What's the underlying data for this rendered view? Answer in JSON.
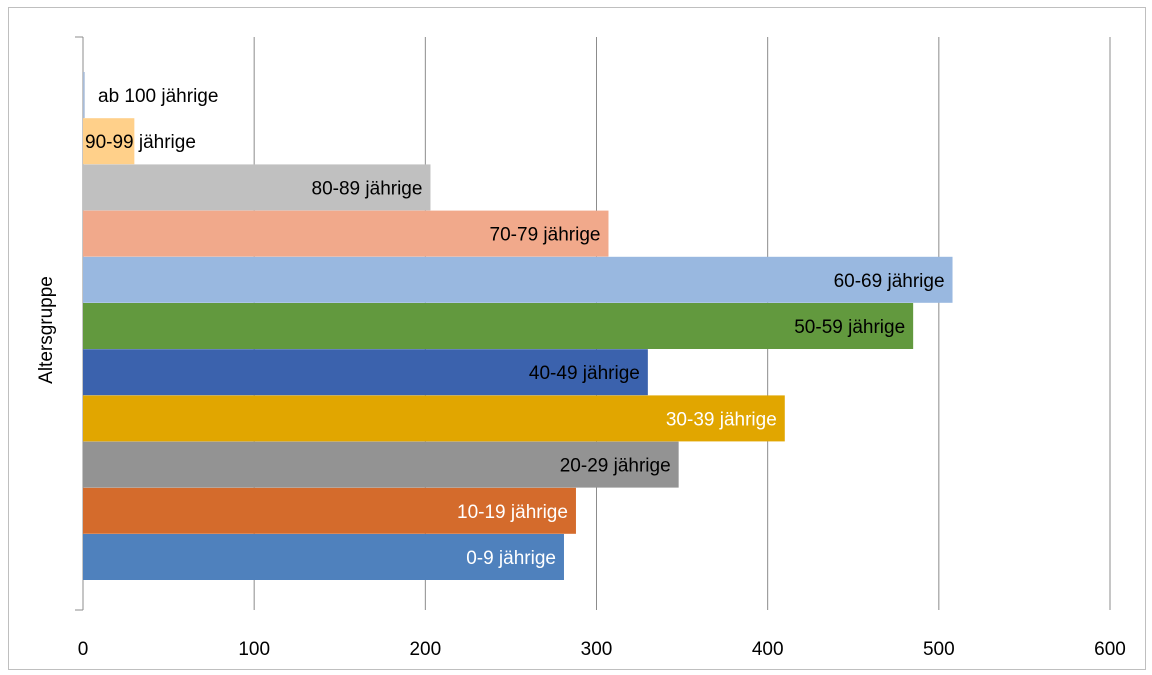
{
  "chart_data": {
    "type": "bar",
    "orientation": "horizontal",
    "title": "",
    "xlabel": "",
    "ylabel": "Altersgruppe",
    "xlim": [
      0,
      600
    ],
    "x_ticks": [
      0,
      100,
      200,
      300,
      400,
      500,
      600
    ],
    "grid": "vertical",
    "legend": "none",
    "categories": [
      "0-9 jährige",
      "10-19 jährige",
      "20-29 jährige",
      "30-39 jährige",
      "40-49 jährige",
      "50-59 jährige",
      "60-69 jährige",
      "70-79 jährige",
      "80-89 jährige",
      "90-99 jährige",
      "ab 100 jährige"
    ],
    "values": [
      281,
      288,
      348,
      410,
      330,
      485,
      508,
      307,
      203,
      30,
      1
    ],
    "colors": [
      "#4f81bd",
      "#d46b2c",
      "#939393",
      "#e1a600",
      "#3b62ad",
      "#62993e",
      "#99b8e0",
      "#f1a98b",
      "#c0c0c0",
      "#ffd08a",
      "#a9bcd8"
    ],
    "label_colors": [
      "#ffffff",
      "#ffffff",
      "#000000",
      "#ffffff",
      "#000000",
      "#000000",
      "#000000",
      "#000000",
      "#000000",
      "#000000",
      "#000000"
    ]
  }
}
